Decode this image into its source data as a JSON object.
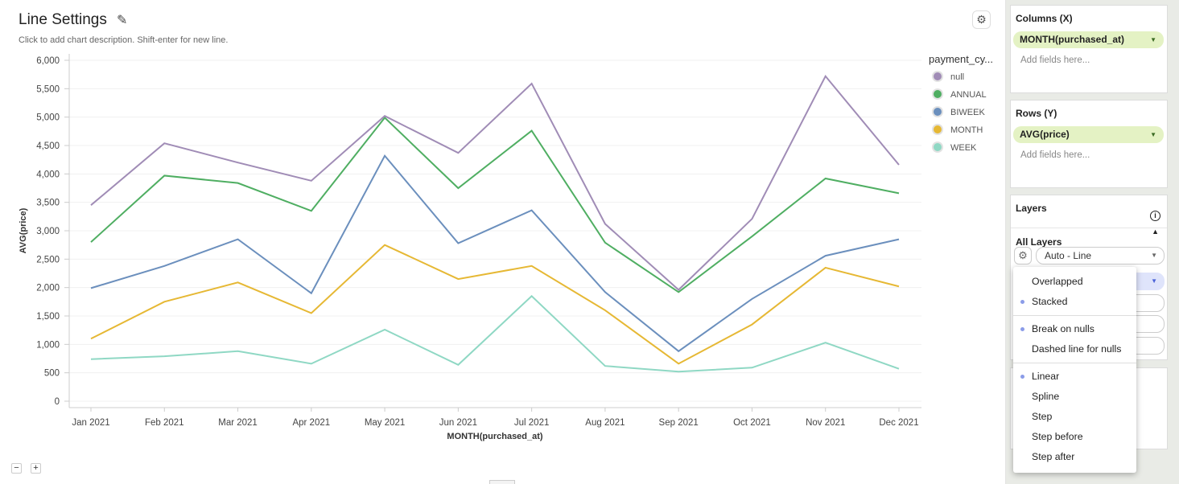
{
  "header": {
    "title": "Line Settings",
    "description": "Click to add chart description. Shift-enter for new line.",
    "edit_icon": "pencil-icon",
    "settings_icon": "gear-icon"
  },
  "zoom_controls": {
    "minus": "−",
    "plus": "+"
  },
  "chart_data": {
    "type": "line",
    "xlabel": "MONTH(purchased_at)",
    "ylabel": "AVG(price)",
    "categories": [
      "Jan 2021",
      "Feb 2021",
      "Mar 2021",
      "Apr 2021",
      "May 2021",
      "Jun 2021",
      "Jul 2021",
      "Aug 2021",
      "Sep 2021",
      "Oct 2021",
      "Nov 2021",
      "Dec 2021"
    ],
    "ylim": [
      0,
      6000
    ],
    "yticks": [
      0,
      500,
      1000,
      1500,
      2000,
      2500,
      3000,
      3500,
      4000,
      4500,
      5000,
      5500,
      6000
    ],
    "ytick_labels": [
      "0",
      "500",
      "1,000",
      "1,500",
      "2,000",
      "2,500",
      "3,000",
      "3,500",
      "4,000",
      "4,500",
      "5,000",
      "5,500",
      "6,000"
    ],
    "grid": true,
    "legend_title": "payment_cy...",
    "legend_position": "right",
    "series": [
      {
        "name": "null",
        "color": "#a08cb6",
        "values": [
          3450,
          4540,
          4200,
          3880,
          5020,
          4370,
          5590,
          3120,
          1960,
          3210,
          5720,
          4160
        ]
      },
      {
        "name": "ANNUAL",
        "color": "#4fae62",
        "values": [
          2800,
          3970,
          3840,
          3350,
          4990,
          3750,
          4760,
          2790,
          1920,
          2900,
          3920,
          3660
        ]
      },
      {
        "name": "BIWEEK",
        "color": "#6b8fbd",
        "values": [
          1990,
          2380,
          2850,
          1900,
          4320,
          2780,
          3360,
          1920,
          880,
          1800,
          2560,
          2850
        ]
      },
      {
        "name": "MONTH",
        "color": "#e6b834",
        "values": [
          1100,
          1750,
          2090,
          1550,
          2750,
          2150,
          2380,
          1600,
          660,
          1350,
          2350,
          2020
        ]
      },
      {
        "name": "WEEK",
        "color": "#8fd8c4",
        "values": [
          740,
          790,
          880,
          660,
          1260,
          640,
          1850,
          620,
          520,
          590,
          1030,
          570
        ]
      }
    ]
  },
  "sidebar": {
    "columns": {
      "title": "Columns (X)",
      "field": "MONTH(purchased_at)",
      "placeholder": "Add fields here..."
    },
    "rows": {
      "title": "Rows (Y)",
      "field": "AVG(price)",
      "placeholder": "Add fields here..."
    },
    "layers": {
      "title": "Layers",
      "all_layers": "All Layers",
      "chart_type": "Auto - Line"
    },
    "menu": [
      {
        "label": "Overlapped",
        "selected": false
      },
      {
        "label": "Stacked",
        "selected": true
      },
      {
        "label": "Break on nulls",
        "selected": true
      },
      {
        "label": "Dashed line for nulls",
        "selected": false
      },
      {
        "label": "Linear",
        "selected": true
      },
      {
        "label": "Spline",
        "selected": false
      },
      {
        "label": "Step",
        "selected": false
      },
      {
        "label": "Step before",
        "selected": false
      },
      {
        "label": "Step after",
        "selected": false
      }
    ]
  }
}
